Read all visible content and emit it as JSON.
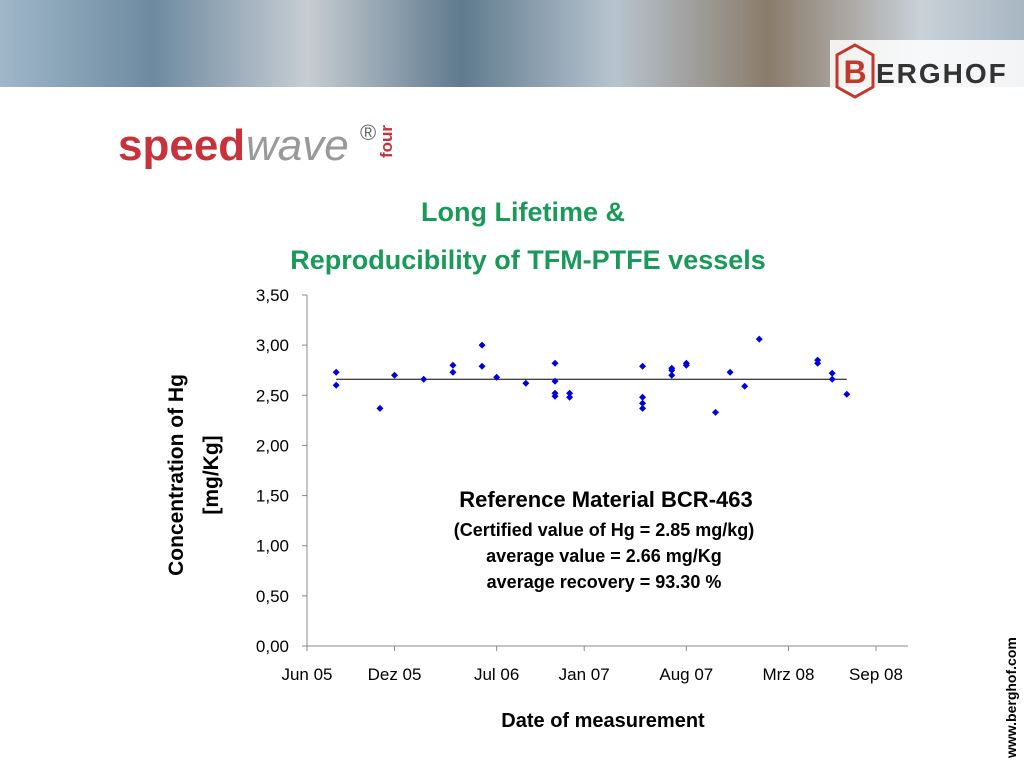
{
  "header": {
    "logo_letter": "B",
    "logo_text": "ERGHOF"
  },
  "brand": {
    "speed": "speed",
    "wave": "wave",
    "registered": "®",
    "four": "four"
  },
  "website": "www.berghof.com",
  "chart_data": {
    "type": "scatter",
    "title": [
      "Long Lifetime &",
      "Reproducibility of TFM-PTFE vessels"
    ],
    "y_label": [
      "Concentration of Hg",
      "[mg/Kg]"
    ],
    "x_label": "Date of measurement",
    "annotations": [
      "Reference Material BCR-463",
      "(Certified value of Hg = 2.85 mg/kg)",
      "average value = 2.66 mg/Kg",
      "average recovery = 93.30 %"
    ],
    "average_line": 2.66,
    "color": "#0000dd",
    "xlim": [
      "2005-06",
      "2008-09"
    ],
    "xticks": [
      {
        "value": "2005-06",
        "label": "Jun 05"
      },
      {
        "value": "2005-12",
        "label": "Dez 05"
      },
      {
        "value": "2006-07",
        "label": "Jul 06"
      },
      {
        "value": "2007-01",
        "label": "Jan 07"
      },
      {
        "value": "2007-08",
        "label": "Aug 07"
      },
      {
        "value": "2008-03",
        "label": "Mrz 08"
      },
      {
        "value": "2008-09",
        "label": "Sep 08"
      }
    ],
    "ylim": [
      0,
      3.5
    ],
    "yticks": [
      {
        "value": 0,
        "label": "0,00"
      },
      {
        "value": 0.5,
        "label": "0,50"
      },
      {
        "value": 1,
        "label": "1,00"
      },
      {
        "value": 1.5,
        "label": "1,50"
      },
      {
        "value": 2,
        "label": "2,00"
      },
      {
        "value": 2.5,
        "label": "2,50"
      },
      {
        "value": 3,
        "label": "3,00"
      },
      {
        "value": 3.5,
        "label": "3,50"
      }
    ],
    "x": [
      "2005-08",
      "2005-08",
      "2005-11",
      "2005-12",
      "2006-02",
      "2006-04",
      "2006-04",
      "2006-06",
      "2006-06",
      "2006-07",
      "2006-09",
      "2006-11",
      "2006-11",
      "2006-11",
      "2006-11",
      "2006-12",
      "2006-12",
      "2007-05",
      "2007-05",
      "2007-05",
      "2007-05",
      "2007-07",
      "2007-07",
      "2007-07",
      "2007-08",
      "2007-08",
      "2007-10",
      "2007-11",
      "2007-12",
      "2008-01",
      "2008-05",
      "2008-05",
      "2008-06",
      "2008-06",
      "2008-07"
    ],
    "values": [
      2.6,
      2.73,
      2.37,
      2.7,
      2.66,
      2.8,
      2.73,
      3.0,
      2.79,
      2.68,
      2.62,
      2.82,
      2.64,
      2.52,
      2.49,
      2.52,
      2.48,
      2.42,
      2.37,
      2.79,
      2.48,
      2.7,
      2.75,
      2.77,
      2.8,
      2.82,
      2.33,
      2.73,
      2.59,
      3.06,
      2.85,
      2.82,
      2.72,
      2.66,
      2.51
    ]
  }
}
